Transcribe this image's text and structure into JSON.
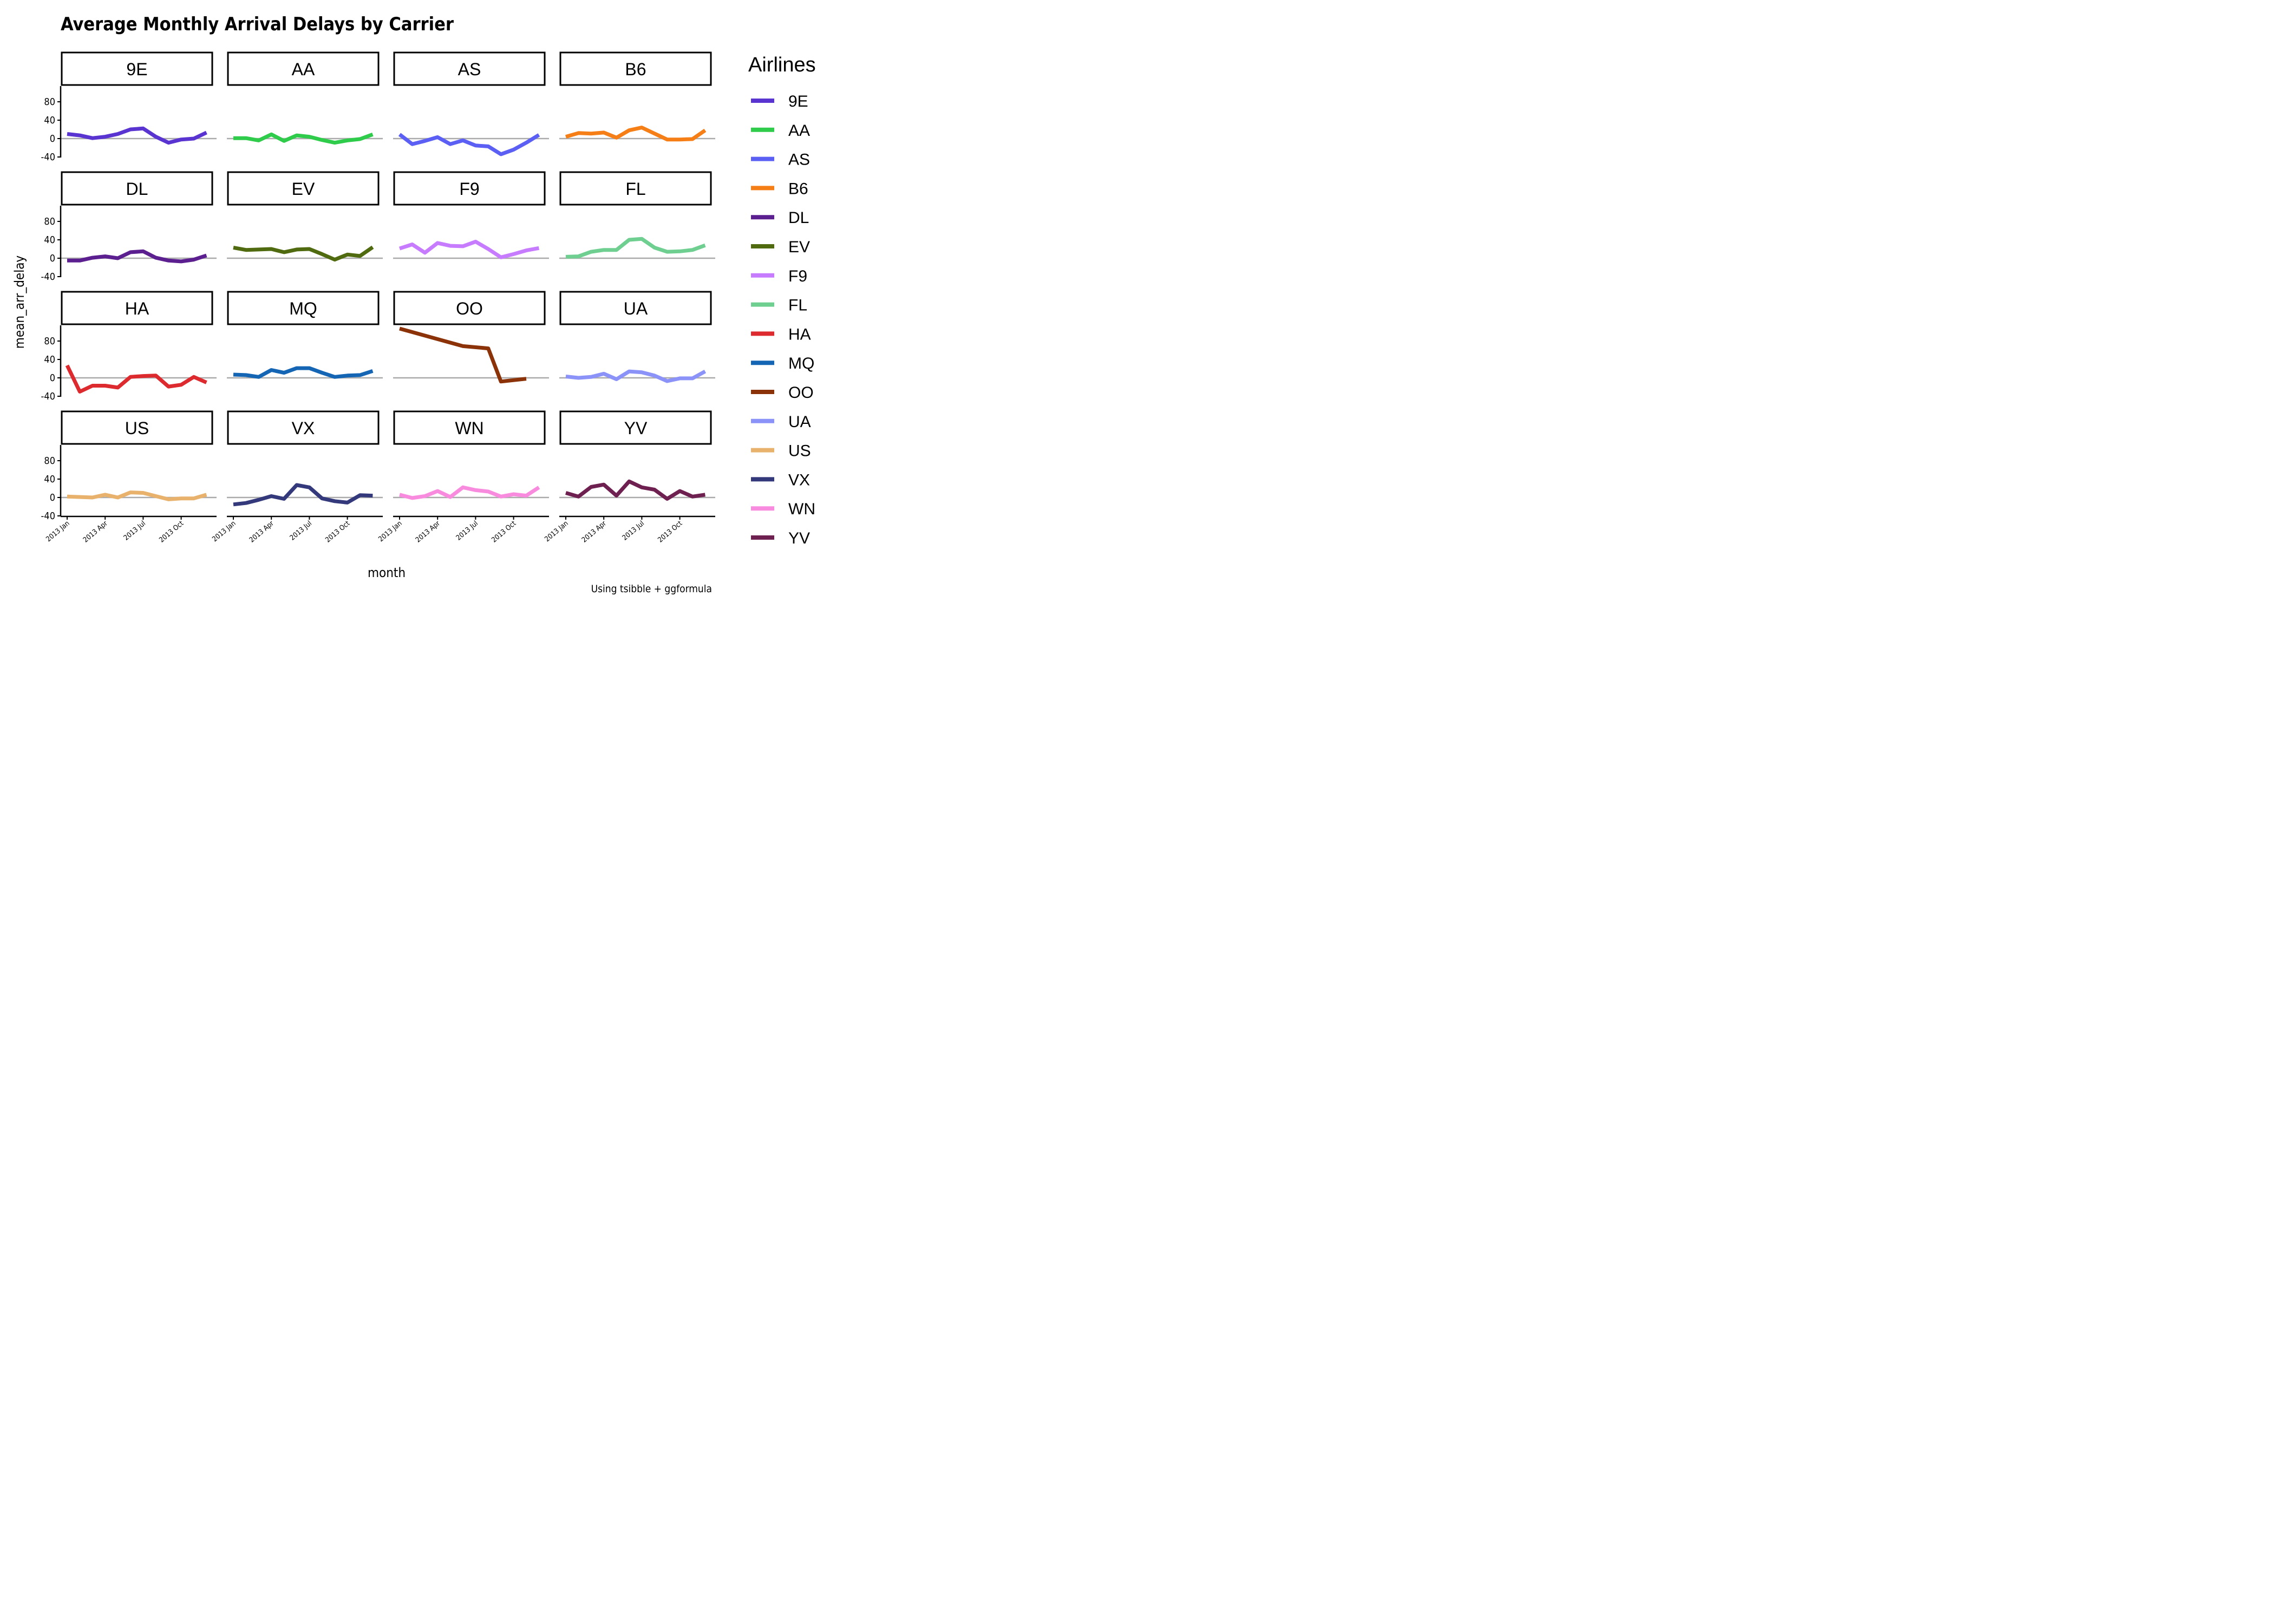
{
  "chart_data": {
    "type": "line",
    "title": "Average Monthly Arrival Delays by Carrier",
    "xlabel": "month",
    "ylabel": "mean_arr_delay",
    "caption": "Using tsibble + ggformula",
    "legend_title": "Airlines",
    "legend_position": "right",
    "facet": "carrier",
    "facet_layout": [
      4,
      4
    ],
    "ylim": [
      -40,
      115
    ],
    "y_ticks": [
      "80",
      "40",
      "0",
      "-40"
    ],
    "y_tick_values": [
      80,
      40,
      0,
      -40
    ],
    "x_ticks": [
      "2013 Jan",
      "2013 Apr",
      "2013 Jul",
      "2013 Oct"
    ],
    "x_tick_values": [
      "2013-01",
      "2013-04",
      "2013-07",
      "2013-10"
    ],
    "x": [
      "2013-01",
      "2013-02",
      "2013-03",
      "2013-04",
      "2013-05",
      "2013-06",
      "2013-07",
      "2013-08",
      "2013-09",
      "2013-10",
      "2013-11",
      "2013-12"
    ],
    "reference_line": 0,
    "series": [
      {
        "name": "9E",
        "color": "#5A34D0",
        "values": [
          10,
          7,
          1,
          4,
          10,
          20,
          22,
          4,
          -9,
          -2,
          0,
          13
        ]
      },
      {
        "name": "AA",
        "color": "#2ECC4A",
        "values": [
          1,
          1,
          -4,
          9,
          -5,
          7,
          4,
          -3,
          -9,
          -4,
          -1,
          9
        ]
      },
      {
        "name": "AS",
        "color": "#5B5FF3",
        "values": [
          9,
          -12,
          -5,
          3,
          -12,
          -4,
          -15,
          -17,
          -34,
          -24,
          -9,
          8
        ]
      },
      {
        "name": "B6",
        "color": "#F57E17",
        "values": [
          4,
          12,
          11,
          13,
          2,
          18,
          24,
          11,
          -2,
          -2,
          -1,
          18
        ]
      },
      {
        "name": "DL",
        "color": "#5B1F8F",
        "values": [
          -5,
          -5,
          1,
          4,
          0,
          13,
          15,
          1,
          -5,
          -7,
          -3,
          6
        ]
      },
      {
        "name": "EV",
        "color": "#4F6A0F",
        "values": [
          23,
          18,
          19,
          20,
          13,
          19,
          20,
          9,
          -3,
          8,
          5,
          24
        ]
      },
      {
        "name": "F9",
        "color": "#C77CFF",
        "values": [
          21,
          30,
          12,
          33,
          27,
          26,
          36,
          20,
          2,
          9,
          17,
          22
        ]
      },
      {
        "name": "FL",
        "color": "#6FCF91",
        "values": [
          3,
          4,
          14,
          18,
          18,
          40,
          42,
          23,
          14,
          15,
          18,
          28
        ]
      },
      {
        "name": "HA",
        "color": "#DC2A2E",
        "values": [
          27,
          -30,
          -17,
          -17,
          -21,
          2,
          4,
          5,
          -19,
          -15,
          2,
          -10
        ]
      },
      {
        "name": "MQ",
        "color": "#1565B5",
        "values": [
          7,
          6,
          2,
          17,
          11,
          21,
          21,
          11,
          2,
          5,
          6,
          15
        ]
      },
      {
        "name": "OO",
        "color": "#8B3208",
        "values": [
          107,
          null,
          null,
          null,
          null,
          69,
          null,
          64,
          -8,
          null,
          -2,
          null
        ]
      },
      {
        "name": "UA",
        "color": "#8C93F8",
        "values": [
          3,
          0,
          2,
          9,
          -3,
          14,
          12,
          5,
          -7,
          -1,
          -1,
          14
        ]
      },
      {
        "name": "US",
        "color": "#E8B16C",
        "values": [
          2,
          1,
          0,
          6,
          0,
          11,
          10,
          3,
          -4,
          -2,
          -2,
          6
        ]
      },
      {
        "name": "VX",
        "color": "#33397A",
        "values": [
          -15,
          -12,
          -5,
          3,
          -3,
          27,
          22,
          -2,
          -8,
          -11,
          5,
          4
        ]
      },
      {
        "name": "WN",
        "color": "#F98BDF",
        "values": [
          6,
          -1,
          3,
          14,
          1,
          22,
          16,
          13,
          2,
          7,
          4,
          22
        ]
      },
      {
        "name": "YV",
        "color": "#6E2050",
        "values": [
          10,
          2,
          23,
          28,
          4,
          35,
          22,
          17,
          -3,
          14,
          2,
          6
        ]
      }
    ]
  }
}
